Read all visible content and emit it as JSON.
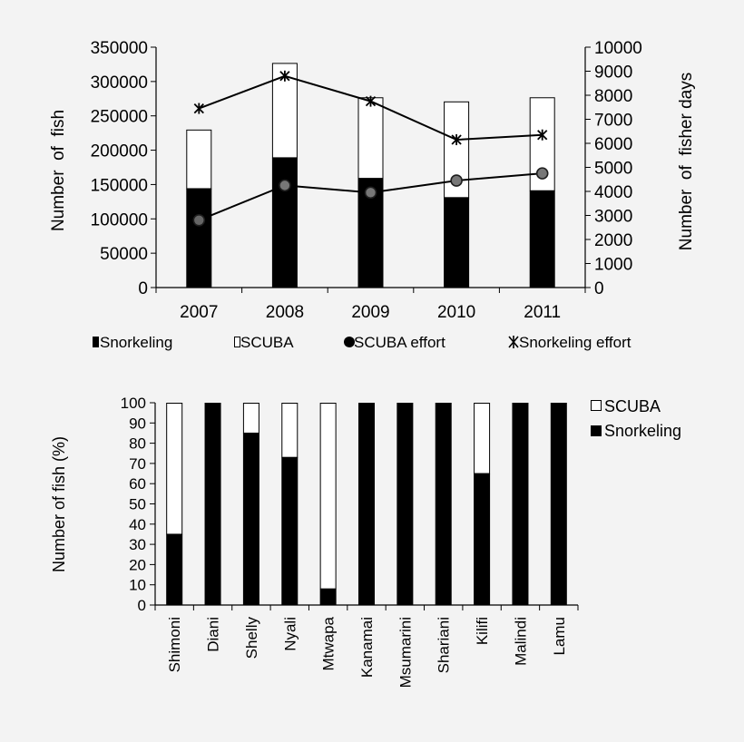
{
  "chart_data": [
    {
      "type": "bar",
      "stacked": true,
      "categories": [
        "2007",
        "2008",
        "2009",
        "2010",
        "2011"
      ],
      "series": [
        {
          "name": "Snorkeling",
          "kind": "bar",
          "axis": "left",
          "color": "#000000",
          "values": [
            144000,
            189000,
            159000,
            131000,
            141000
          ]
        },
        {
          "name": "SCUBA",
          "kind": "bar",
          "axis": "left",
          "color": "#ffffff",
          "values": [
            86000,
            138000,
            118000,
            140000,
            136000
          ]
        },
        {
          "name": "SCUBA effort",
          "kind": "line",
          "marker": "circle",
          "axis": "right",
          "values": [
            2800,
            4250,
            3950,
            4450,
            4750
          ]
        },
        {
          "name": "Snorkeling effort",
          "kind": "line",
          "marker": "asterisk",
          "axis": "right",
          "values": [
            7450,
            8800,
            7750,
            6150,
            6350
          ]
        }
      ],
      "legend_labels": [
        "Snorkeling",
        "SCUBA",
        "SCUBA effort",
        "Snorkeling effort"
      ],
      "ylabel": "Number  of  fish",
      "y2label": "Number  of  fisher days",
      "ylim": [
        0,
        350000
      ],
      "y2lim": [
        0,
        10000
      ],
      "yticks": [
        "0",
        "50000",
        "100000",
        "150000",
        "200000",
        "250000",
        "300000",
        "350000"
      ],
      "y2ticks": [
        "0",
        "1000",
        "2000",
        "3000",
        "4000",
        "5000",
        "6000",
        "7000",
        "8000",
        "9000",
        "10000"
      ],
      "legend_position": "bottom"
    },
    {
      "type": "bar",
      "stacked": true,
      "categories": [
        "Shimoni",
        "Diani",
        "Shelly",
        "Nyali",
        "Mtwapa",
        "Kanamai",
        "Msumarini",
        "Shariani",
        "Kilifi",
        "Malindi",
        "Lamu"
      ],
      "series": [
        {
          "name": "Snorkeling",
          "color": "#000000",
          "values": [
            35,
            100,
            85,
            73,
            8,
            100,
            100,
            100,
            65,
            100,
            100
          ]
        },
        {
          "name": "SCUBA",
          "color": "#ffffff",
          "values": [
            65,
            0,
            15,
            27,
            92,
            0,
            0,
            0,
            35,
            0,
            0
          ]
        }
      ],
      "legend_labels": [
        "SCUBA",
        "Snorkeling"
      ],
      "ylabel": "Number of fish (%)",
      "ylim": [
        0,
        100
      ],
      "yticks": [
        "0",
        "10",
        "20",
        "30",
        "40",
        "50",
        "60",
        "70",
        "80",
        "90",
        "100"
      ],
      "legend_position": "top-right"
    }
  ]
}
